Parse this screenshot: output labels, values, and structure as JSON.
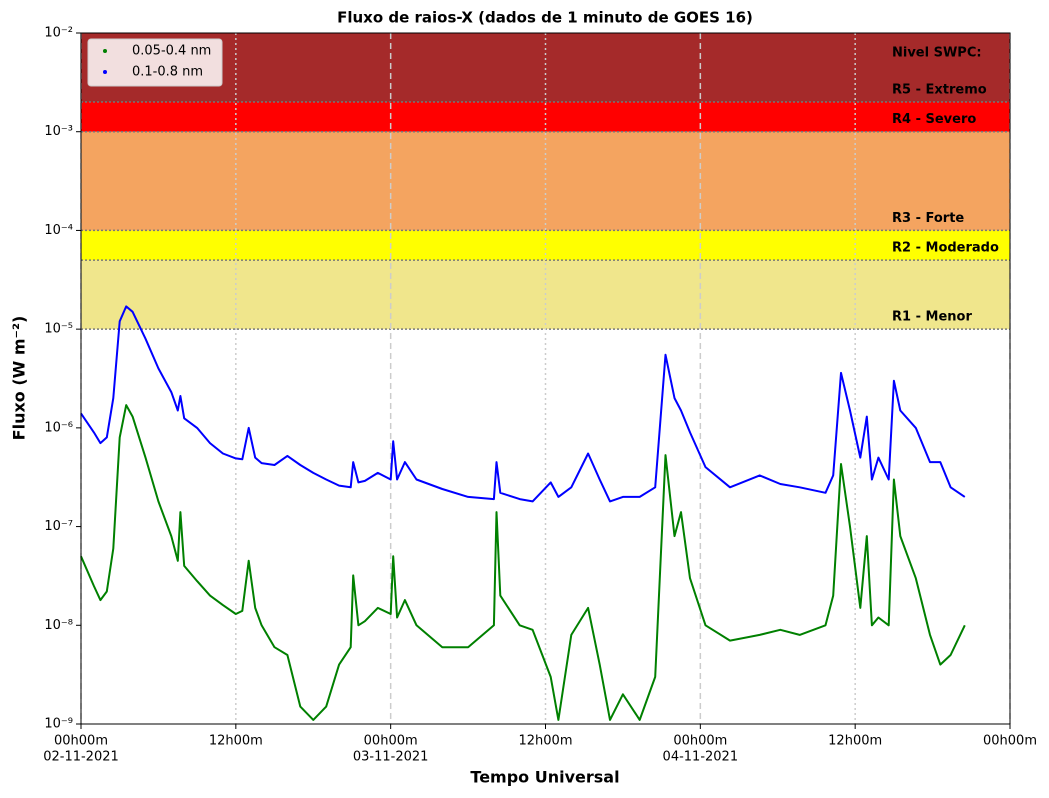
{
  "chart_data": {
    "type": "line",
    "title": "Fluxo de raios-X (dados de 1 minuto de GOES 16)",
    "xlabel": "Tempo Universal",
    "ylabel": "Fluxo (W m⁻²)",
    "log_y": true,
    "grid": true,
    "legend": "upper left",
    "levels_title": "Nivel SWPC:",
    "bands": [
      {
        "label": "R1 - Menor",
        "from": 1e-05,
        "to": 5e-05,
        "color": "#f0e68c"
      },
      {
        "label": "R2 - Moderado",
        "from": 5e-05,
        "to": 0.0001,
        "color": "#ffff00"
      },
      {
        "label": "R3 - Forte",
        "from": 0.0001,
        "to": 0.001,
        "color": "#f4a460"
      },
      {
        "label": "R4 - Severo",
        "from": 0.001,
        "to": 0.002,
        "color": "#ff0000"
      },
      {
        "label": "R5 - Extremo",
        "from": 0.002,
        "to": 0.01,
        "color": "#a52a2a"
      }
    ],
    "xlim": [
      "2021-11-02T00:00",
      "2021-11-05T00:00"
    ],
    "xticks": [
      {
        "value": "2021-11-02T00:00",
        "label": "00h00m",
        "date": "02-11-2021"
      },
      {
        "value": "2021-11-02T12:00",
        "label": "12h00m"
      },
      {
        "value": "2021-11-03T00:00",
        "label": "00h00m",
        "date": "03-11-2021"
      },
      {
        "value": "2021-11-03T12:00",
        "label": "12h00m"
      },
      {
        "value": "2021-11-04T00:00",
        "label": "00h00m",
        "date": "04-11-2021"
      },
      {
        "value": "2021-11-04T12:00",
        "label": "12h00m"
      },
      {
        "value": "2021-11-05T00:00",
        "label": "00h00m"
      }
    ],
    "ylim": [
      1e-09,
      0.01
    ],
    "yticks": [
      {
        "value": 1e-09,
        "label": "10⁻⁹"
      },
      {
        "value": 1e-08,
        "label": "10⁻⁸"
      },
      {
        "value": 1e-07,
        "label": "10⁻⁷"
      },
      {
        "value": 1e-06,
        "label": "10⁻⁶"
      },
      {
        "value": 1e-05,
        "label": "10⁻⁵"
      },
      {
        "value": 0.0001,
        "label": "10⁻⁴"
      },
      {
        "value": 0.001,
        "label": "10⁻³"
      },
      {
        "value": 0.01,
        "label": "10⁻²"
      }
    ],
    "x": [
      "2021-11-02T00:00",
      "2021-11-02T01:00",
      "2021-11-02T01:30",
      "2021-11-02T02:00",
      "2021-11-02T02:30",
      "2021-11-02T03:00",
      "2021-11-02T03:30",
      "2021-11-02T04:00",
      "2021-11-02T05:00",
      "2021-11-02T06:00",
      "2021-11-02T07:00",
      "2021-11-02T07:30",
      "2021-11-02T07:42",
      "2021-11-02T08:00",
      "2021-11-02T09:00",
      "2021-11-02T10:00",
      "2021-11-02T11:00",
      "2021-11-02T12:00",
      "2021-11-02T12:30",
      "2021-11-02T13:00",
      "2021-11-02T13:30",
      "2021-11-02T14:00",
      "2021-11-02T15:00",
      "2021-11-02T16:00",
      "2021-11-02T17:00",
      "2021-11-02T18:00",
      "2021-11-02T19:00",
      "2021-11-02T20:00",
      "2021-11-02T20:54",
      "2021-11-02T21:06",
      "2021-11-02T21:30",
      "2021-11-02T22:00",
      "2021-11-02T23:00",
      "2021-11-03T00:00",
      "2021-11-03T00:12",
      "2021-11-03T00:30",
      "2021-11-03T01:06",
      "2021-11-03T02:00",
      "2021-11-03T04:00",
      "2021-11-03T06:00",
      "2021-11-03T08:00",
      "2021-11-03T08:12",
      "2021-11-03T08:30",
      "2021-11-03T10:00",
      "2021-11-03T11:00",
      "2021-11-03T12:24",
      "2021-11-03T13:00",
      "2021-11-03T14:00",
      "2021-11-03T15:18",
      "2021-11-03T16:12",
      "2021-11-03T17:00",
      "2021-11-03T18:00",
      "2021-11-03T19:18",
      "2021-11-03T20:30",
      "2021-11-03T21:18",
      "2021-11-03T22:00",
      "2021-11-03T22:30",
      "2021-11-03T23:12",
      "2021-11-04T00:24",
      "2021-11-04T02:18",
      "2021-11-04T04:36",
      "2021-11-04T06:12",
      "2021-11-04T07:42",
      "2021-11-04T09:42",
      "2021-11-04T10:18",
      "2021-11-04T10:54",
      "2021-11-04T11:36",
      "2021-11-04T12:24",
      "2021-11-04T12:54",
      "2021-11-04T13:18",
      "2021-11-04T13:48",
      "2021-11-04T14:36",
      "2021-11-04T15:00",
      "2021-11-04T15:30",
      "2021-11-04T16:42",
      "2021-11-04T17:48",
      "2021-11-04T18:36",
      "2021-11-04T19:24",
      "2021-11-04T20:30"
    ],
    "series": [
      {
        "name": "0.05-0.4 nm",
        "color": "#008000",
        "values": [
          5e-08,
          2.5e-08,
          1.8e-08,
          2.2e-08,
          6e-08,
          8e-07,
          1.7e-06,
          1.3e-06,
          5e-07,
          1.8e-07,
          8e-08,
          4.5e-08,
          1.4e-07,
          4e-08,
          2.8e-08,
          2e-08,
          1.6e-08,
          1.3e-08,
          1.4e-08,
          4.5e-08,
          1.5e-08,
          1e-08,
          6e-09,
          5e-09,
          1.5e-09,
          1.1e-09,
          1.5e-09,
          4e-09,
          6e-09,
          3.2e-08,
          1e-08,
          1.1e-08,
          1.5e-08,
          1.3e-08,
          5e-08,
          1.2e-08,
          1.8e-08,
          1e-08,
          6e-09,
          6e-09,
          1e-08,
          1.4e-07,
          2e-08,
          1e-08,
          9e-09,
          3e-09,
          1.1e-09,
          8e-09,
          1.5e-08,
          4e-09,
          1.1e-09,
          2e-09,
          1.1e-09,
          3e-09,
          5.3e-07,
          8e-08,
          1.4e-07,
          3e-08,
          1e-08,
          7e-09,
          8e-09,
          9e-09,
          8e-09,
          1e-08,
          2e-08,
          4.3e-07,
          1e-07,
          1.5e-08,
          8e-08,
          1e-08,
          1.2e-08,
          1e-08,
          3e-07,
          8e-08,
          3e-08,
          8e-09,
          4e-09,
          5e-09,
          1e-08
        ]
      },
      {
        "name": "0.1-0.8 nm",
        "color": "#0000ff",
        "values": [
          1.4e-06,
          9e-07,
          7e-07,
          8e-07,
          2e-06,
          1.2e-05,
          1.7e-05,
          1.5e-05,
          8e-06,
          4e-06,
          2.3e-06,
          1.5e-06,
          2.1e-06,
          1.25e-06,
          1e-06,
          7e-07,
          5.5e-07,
          4.9e-07,
          4.8e-07,
          1e-06,
          5e-07,
          4.4e-07,
          4.2e-07,
          5.2e-07,
          4.2e-07,
          3.5e-07,
          3e-07,
          2.6e-07,
          2.5e-07,
          4.5e-07,
          2.8e-07,
          2.9e-07,
          3.5e-07,
          3e-07,
          7.3e-07,
          3e-07,
          4.5e-07,
          3e-07,
          2.4e-07,
          2e-07,
          1.9e-07,
          4.5e-07,
          2.2e-07,
          1.9e-07,
          1.8e-07,
          2.8e-07,
          2e-07,
          2.5e-07,
          5.5e-07,
          3e-07,
          1.8e-07,
          2e-07,
          2e-07,
          2.5e-07,
          5.5e-06,
          2e-06,
          1.5e-06,
          9e-07,
          4e-07,
          2.5e-07,
          3.3e-07,
          2.7e-07,
          2.5e-07,
          2.2e-07,
          3.3e-07,
          3.6e-06,
          1.5e-06,
          5e-07,
          1.3e-06,
          3e-07,
          5e-07,
          3e-07,
          3e-06,
          1.5e-06,
          1e-06,
          4.5e-07,
          4.5e-07,
          2.5e-07,
          2e-07
        ]
      }
    ]
  }
}
